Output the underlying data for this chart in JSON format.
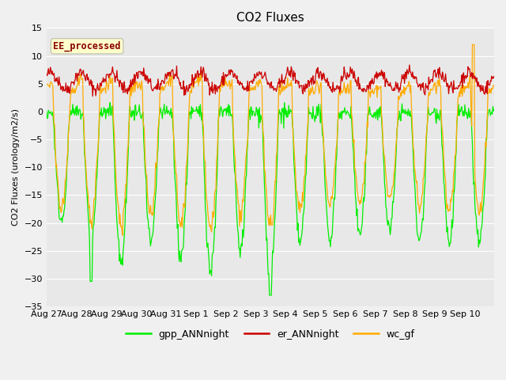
{
  "title": "CO2 Fluxes",
  "ylabel": "CO2 Fluxes (urology/m2/s)",
  "ylim": [
    -35,
    15
  ],
  "yticks": [
    -35,
    -30,
    -25,
    -20,
    -15,
    -10,
    -5,
    0,
    5,
    10,
    15
  ],
  "fig_bg": "#f0f0f0",
  "plot_bg": "#e8e8e8",
  "gpp_color": "#00ee00",
  "er_color": "#cc0000",
  "wc_color": "#ffaa00",
  "annotation_text": "EE_processed",
  "annotation_color": "#880000",
  "annotation_bg": "#ffffcc",
  "legend_labels": [
    "gpp_ANNnight",
    "er_ANNnight",
    "wc_gf"
  ],
  "n_days": 15,
  "points_per_day": 48,
  "title_fontsize": 11,
  "axis_fontsize": 8,
  "tick_fontsize": 8
}
